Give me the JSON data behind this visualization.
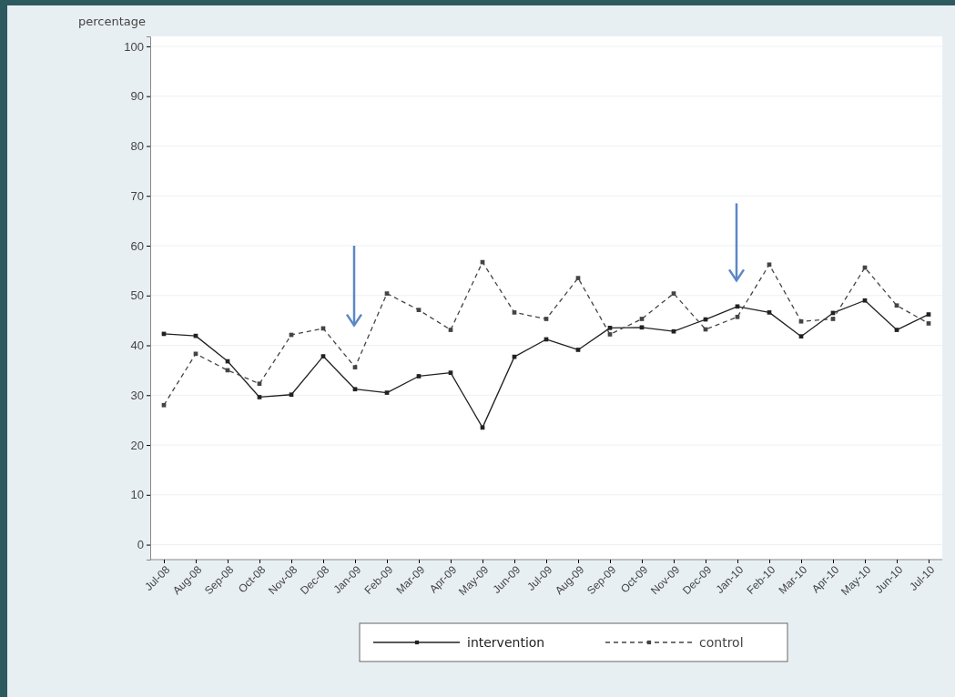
{
  "chart_data": {
    "type": "line",
    "ylabel": "percentage",
    "categories": [
      "Jul-08",
      "Aug-08",
      "Sep-08",
      "Oct-08",
      "Nov-08",
      "Dec-08",
      "Jan-09",
      "Feb-09",
      "Mar-09",
      "Apr-09",
      "May-09",
      "Jun-09",
      "Jul-09",
      "Aug-09",
      "Sep-09",
      "Oct-09",
      "Nov-09",
      "Dec-09",
      "Jan-10",
      "Feb-10",
      "Mar-10",
      "Apr-10",
      "May-10",
      "Jun-10",
      "Jul-10"
    ],
    "series": [
      {
        "name": "intervention",
        "color": "#222222",
        "line_style": "solid",
        "values": [
          42.3,
          41.9,
          36.8,
          29.6,
          30.1,
          37.8,
          31.2,
          30.5,
          33.8,
          34.5,
          23.5,
          37.7,
          41.2,
          39.1,
          43.5,
          43.6,
          42.8,
          45.2,
          47.8,
          46.6,
          41.8,
          46.5,
          49.0,
          43.1,
          46.2
        ]
      },
      {
        "name": "control",
        "color": "#444444",
        "line_style": "dashed",
        "values": [
          28.0,
          38.3,
          35.0,
          32.3,
          42.1,
          43.4,
          35.6,
          50.4,
          47.1,
          43.1,
          56.7,
          46.6,
          45.3,
          53.5,
          42.2,
          45.3,
          50.4,
          43.2,
          45.7,
          56.2,
          44.8,
          45.3,
          55.6,
          48.0,
          44.4
        ]
      }
    ],
    "ylim": [
      -3,
      102
    ],
    "yticks": [
      0,
      10,
      20,
      30,
      40,
      50,
      60,
      70,
      80,
      90,
      100
    ],
    "grid": "y",
    "legend": "bottom",
    "marker": "square"
  }
}
